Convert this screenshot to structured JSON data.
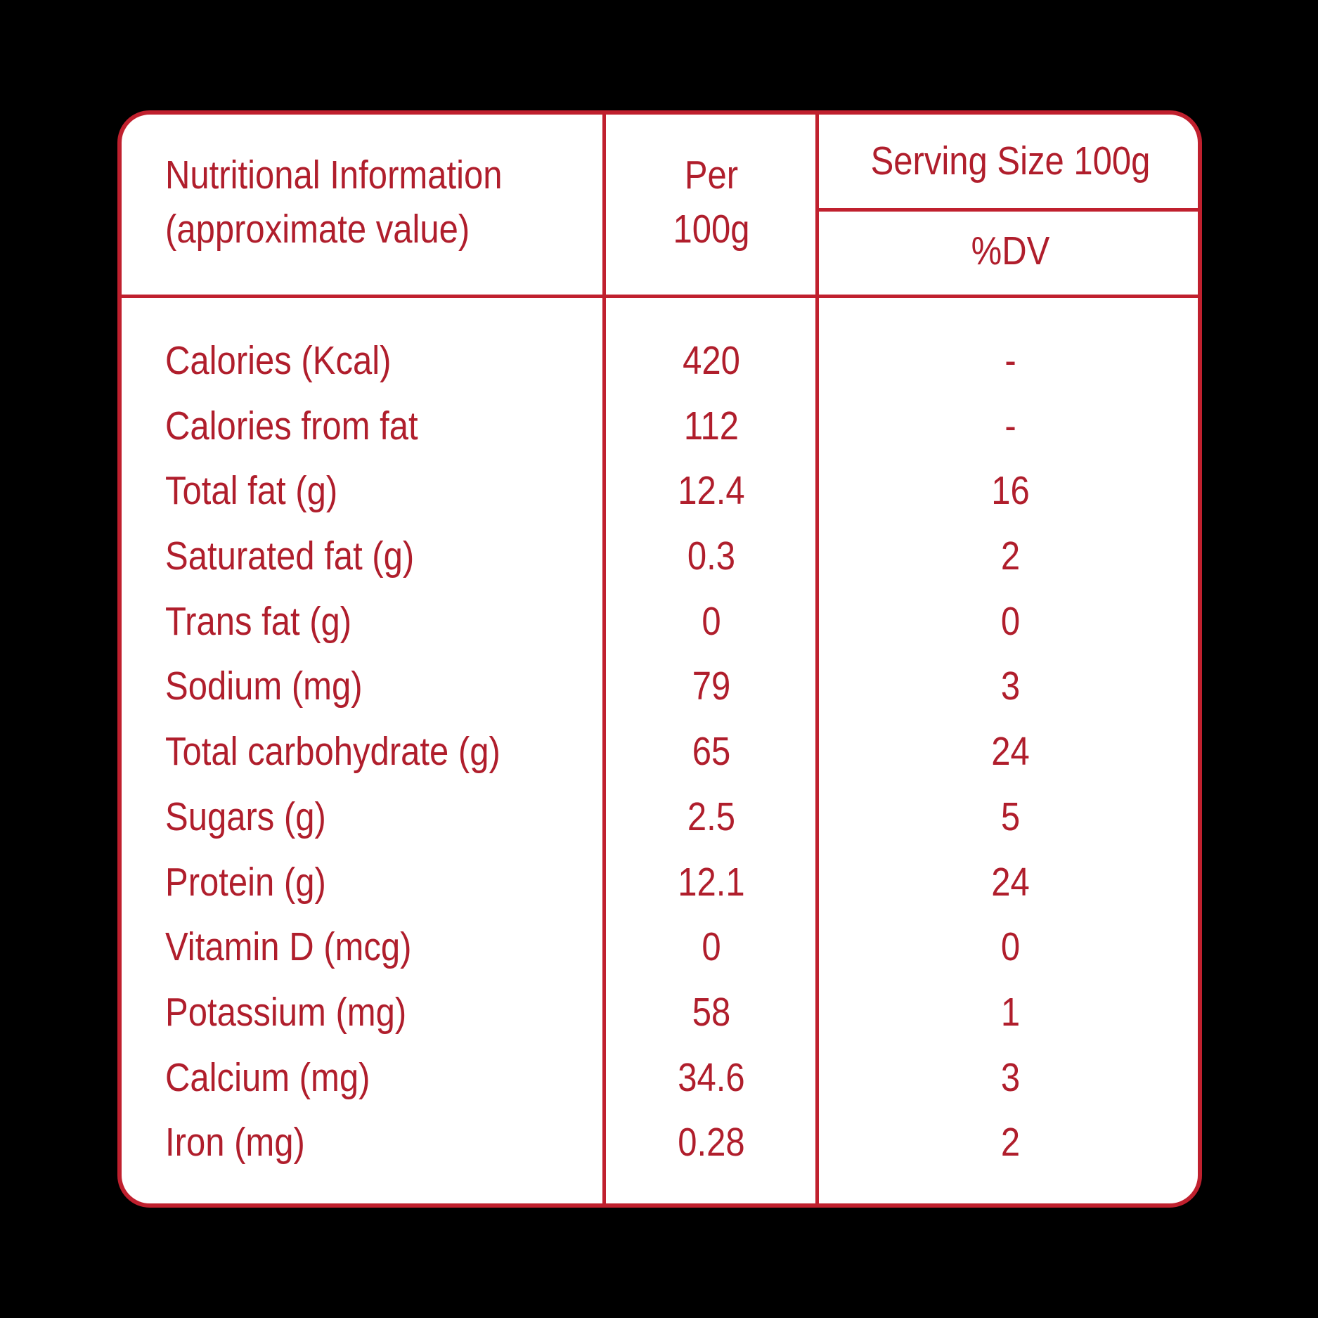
{
  "header": {
    "title_line1": "Nutritional Information",
    "title_line2": "(approximate value)",
    "per_line1": "Per",
    "per_line2": "100g",
    "serving_size": "Serving Size 100g",
    "dv_label": "%DV"
  },
  "rows": [
    {
      "nutrient": "Calories (Kcal)",
      "per_100g": "420",
      "dv": "-"
    },
    {
      "nutrient": "Calories from fat",
      "per_100g": "112",
      "dv": "-"
    },
    {
      "nutrient": "Total fat (g)",
      "per_100g": "12.4",
      "dv": "16"
    },
    {
      "nutrient": "Saturated fat (g)",
      "per_100g": "0.3",
      "dv": "2"
    },
    {
      "nutrient": "Trans fat (g)",
      "per_100g": "0",
      "dv": "0"
    },
    {
      "nutrient": "Sodium (mg)",
      "per_100g": "79",
      "dv": "3"
    },
    {
      "nutrient": "Total carbohydrate (g)",
      "per_100g": "65",
      "dv": "24"
    },
    {
      "nutrient": "Sugars (g)",
      "per_100g": "2.5",
      "dv": "5"
    },
    {
      "nutrient": "Protein (g)",
      "per_100g": "12.1",
      "dv": "24"
    },
    {
      "nutrient": "Vitamin D (mcg)",
      "per_100g": "0",
      "dv": "0"
    },
    {
      "nutrient": "Potassium (mg)",
      "per_100g": "58",
      "dv": "1"
    },
    {
      "nutrient": "Calcium (mg)",
      "per_100g": "34.6",
      "dv": "3"
    },
    {
      "nutrient": "Iron (mg)",
      "per_100g": "0.28",
      "dv": "2"
    }
  ],
  "colors": {
    "accent": "#c0202e",
    "text": "#b01e2c",
    "background": "#000000",
    "panel": "#ffffff"
  }
}
